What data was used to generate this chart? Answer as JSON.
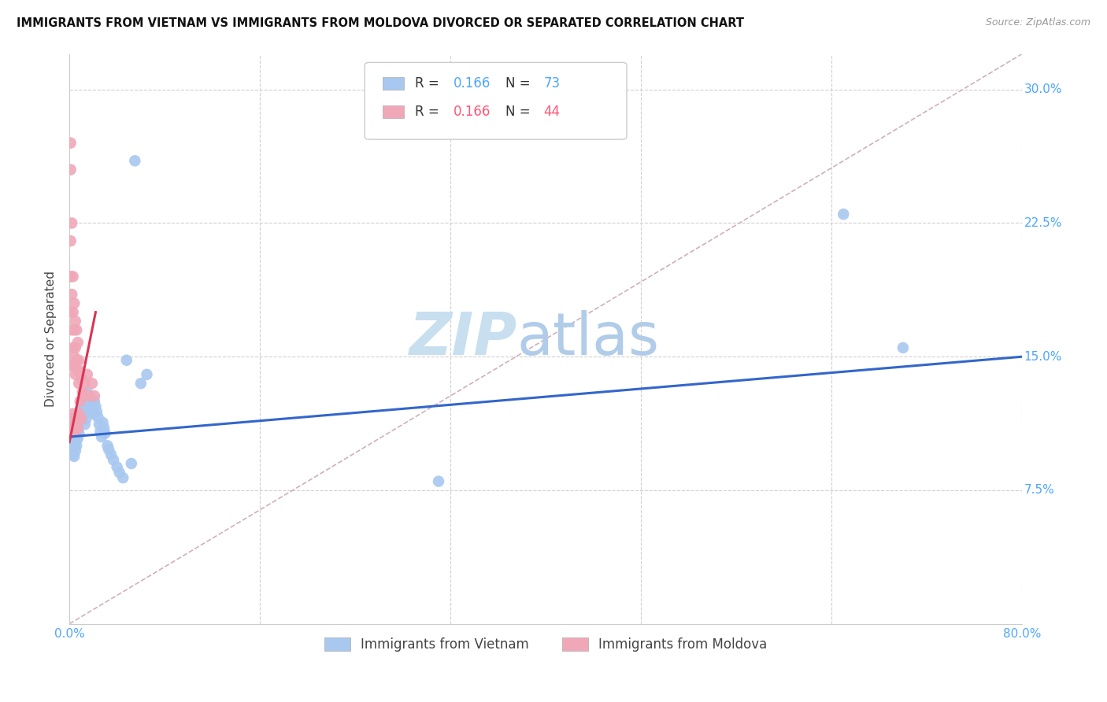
{
  "title": "IMMIGRANTS FROM VIETNAM VS IMMIGRANTS FROM MOLDOVA DIVORCED OR SEPARATED CORRELATION CHART",
  "source": "Source: ZipAtlas.com",
  "ylabel": "Divorced or Separated",
  "xlim": [
    0.0,
    0.8
  ],
  "ylim": [
    0.0,
    0.32
  ],
  "yticks": [
    0.075,
    0.15,
    0.225,
    0.3
  ],
  "ytick_labels": [
    "7.5%",
    "15.0%",
    "22.5%",
    "30.0%"
  ],
  "xticks": [
    0.0,
    0.16,
    0.32,
    0.48,
    0.64,
    0.8
  ],
  "xtick_labels": [
    "0.0%",
    "",
    "",
    "",
    "",
    "80.0%"
  ],
  "legend_r_color_blue": "#4da6ff",
  "legend_r_color_pink": "#ff5577",
  "legend_n_color_blue": "#4da6ff",
  "legend_n_color_pink": "#ff5577",
  "watermark_zip": "ZIP",
  "watermark_atlas": "atlas",
  "watermark_color_zip": "#c8dff0",
  "watermark_color_atlas": "#b0cce8",
  "scatter_blue_color": "#a8c8f0",
  "scatter_pink_color": "#f0a8b8",
  "scatter_size": 110,
  "line_blue_color": "#3366cc",
  "line_pink_color": "#dd3355",
  "line_diag_color": "#d0b0b8",
  "line_width": 2.2,
  "grid_color": "#d0d0d0",
  "background_color": "#ffffff",
  "vietnam_x": [
    0.001,
    0.001,
    0.002,
    0.002,
    0.002,
    0.002,
    0.003,
    0.003,
    0.003,
    0.003,
    0.004,
    0.004,
    0.004,
    0.004,
    0.004,
    0.005,
    0.005,
    0.005,
    0.005,
    0.006,
    0.006,
    0.006,
    0.006,
    0.007,
    0.007,
    0.007,
    0.008,
    0.008,
    0.008,
    0.009,
    0.009,
    0.01,
    0.01,
    0.011,
    0.011,
    0.012,
    0.012,
    0.013,
    0.013,
    0.014,
    0.015,
    0.015,
    0.016,
    0.016,
    0.017,
    0.018,
    0.019,
    0.02,
    0.021,
    0.022,
    0.023,
    0.024,
    0.025,
    0.026,
    0.027,
    0.028,
    0.029,
    0.03,
    0.032,
    0.033,
    0.035,
    0.037,
    0.04,
    0.042,
    0.045,
    0.048,
    0.052,
    0.055,
    0.06,
    0.065,
    0.31,
    0.65,
    0.7
  ],
  "vietnam_y": [
    0.115,
    0.105,
    0.112,
    0.108,
    0.103,
    0.098,
    0.11,
    0.106,
    0.101,
    0.095,
    0.114,
    0.109,
    0.104,
    0.099,
    0.094,
    0.113,
    0.107,
    0.102,
    0.097,
    0.116,
    0.11,
    0.105,
    0.1,
    0.115,
    0.109,
    0.104,
    0.118,
    0.112,
    0.107,
    0.12,
    0.114,
    0.122,
    0.116,
    0.125,
    0.119,
    0.128,
    0.122,
    0.118,
    0.112,
    0.115,
    0.13,
    0.124,
    0.128,
    0.122,
    0.119,
    0.125,
    0.121,
    0.118,
    0.125,
    0.122,
    0.119,
    0.116,
    0.112,
    0.108,
    0.105,
    0.113,
    0.11,
    0.107,
    0.1,
    0.098,
    0.095,
    0.092,
    0.088,
    0.085,
    0.082,
    0.148,
    0.09,
    0.26,
    0.135,
    0.14,
    0.08,
    0.23,
    0.155
  ],
  "moldova_x": [
    0.001,
    0.001,
    0.001,
    0.001,
    0.001,
    0.002,
    0.002,
    0.002,
    0.002,
    0.003,
    0.003,
    0.003,
    0.003,
    0.004,
    0.004,
    0.004,
    0.005,
    0.005,
    0.005,
    0.006,
    0.006,
    0.007,
    0.007,
    0.008,
    0.008,
    0.009,
    0.01,
    0.011,
    0.012,
    0.013,
    0.015,
    0.017,
    0.019,
    0.021,
    0.001,
    0.002,
    0.003,
    0.004,
    0.005,
    0.006,
    0.007,
    0.008,
    0.009,
    0.01
  ],
  "moldova_y": [
    0.27,
    0.255,
    0.215,
    0.195,
    0.175,
    0.225,
    0.185,
    0.165,
    0.145,
    0.195,
    0.175,
    0.155,
    0.145,
    0.18,
    0.165,
    0.15,
    0.17,
    0.155,
    0.14,
    0.165,
    0.148,
    0.158,
    0.142,
    0.148,
    0.135,
    0.142,
    0.138,
    0.13,
    0.128,
    0.135,
    0.14,
    0.128,
    0.135,
    0.128,
    0.108,
    0.112,
    0.118,
    0.112,
    0.108,
    0.115,
    0.11,
    0.118,
    0.125,
    0.115
  ],
  "blue_line_x": [
    0.0,
    0.8
  ],
  "blue_line_y": [
    0.105,
    0.15
  ],
  "pink_line_x": [
    0.0,
    0.022
  ],
  "pink_line_y": [
    0.102,
    0.175
  ],
  "diag_line_x": [
    0.0,
    0.8
  ],
  "diag_line_y": [
    0.0,
    0.32
  ]
}
